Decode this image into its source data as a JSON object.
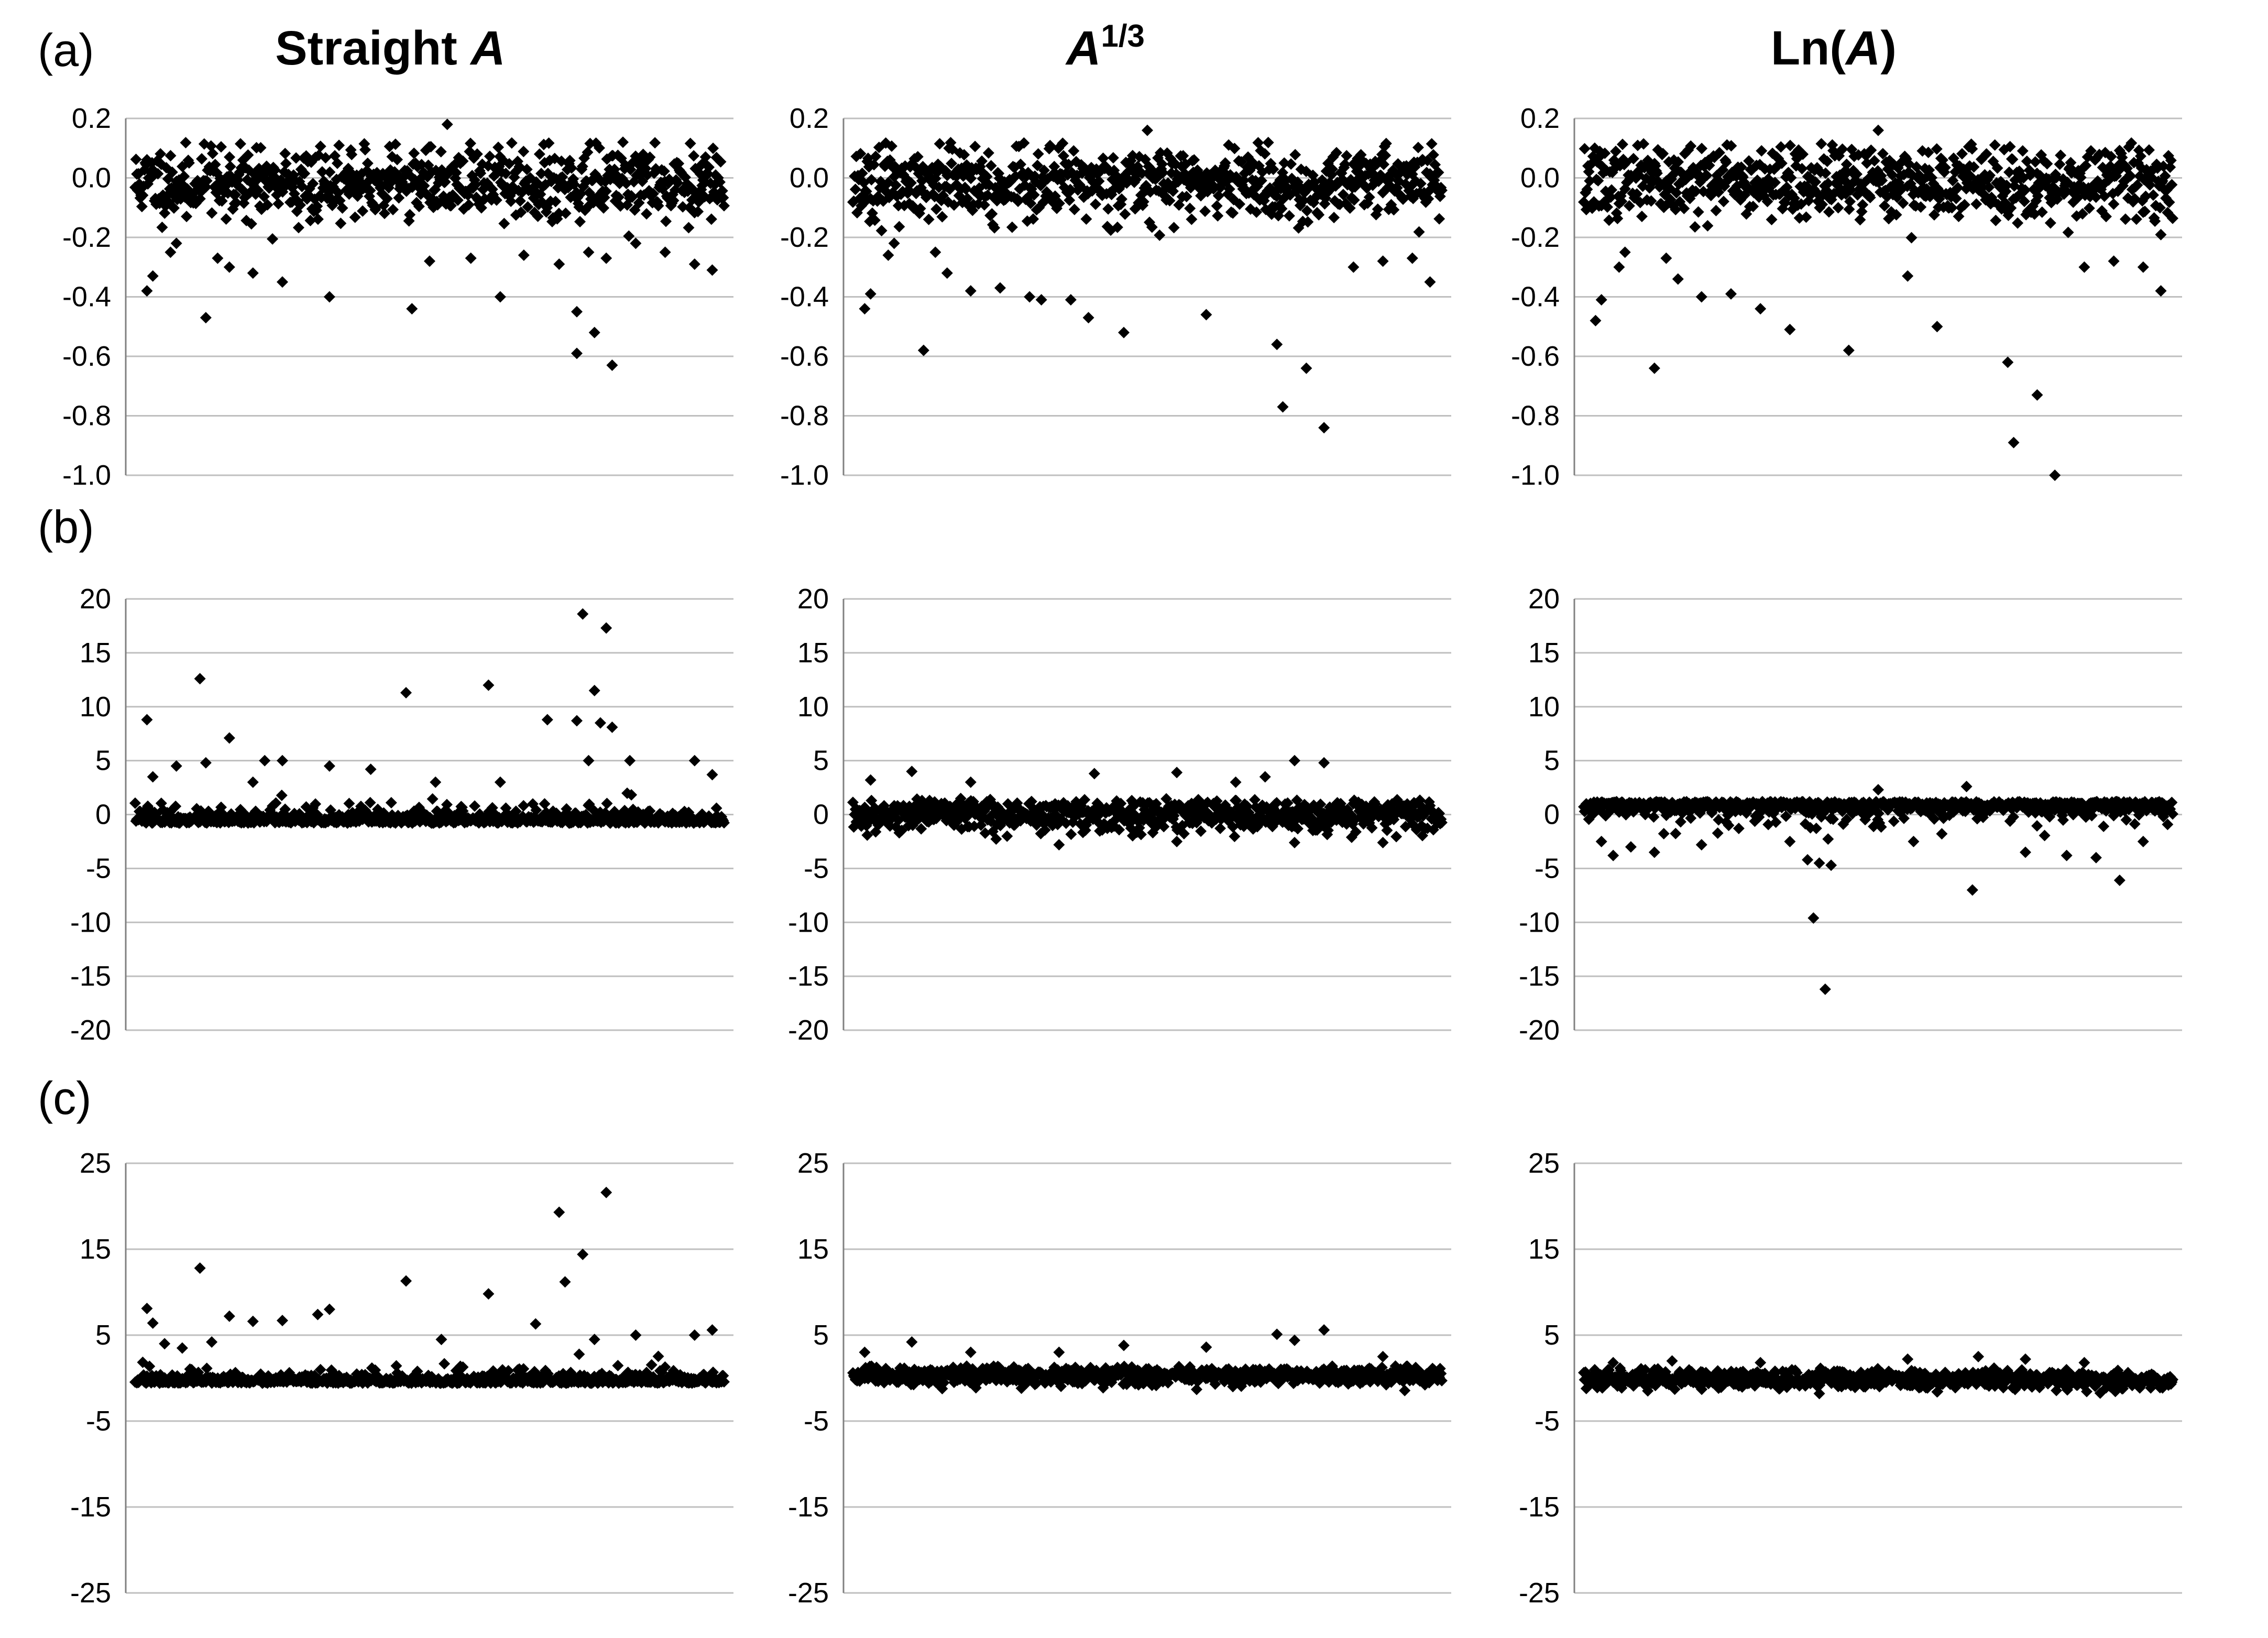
{
  "column_titles": [
    {
      "prefix": "Straight ",
      "var": "A",
      "sup": "",
      "suffix": ""
    },
    {
      "prefix": "",
      "var": "A",
      "sup": "1/3",
      "suffix": ""
    },
    {
      "prefix": "Ln(",
      "var": "A",
      "sup": "",
      "suffix": ")"
    }
  ],
  "row_labels": [
    "(a)",
    "(b)",
    "(c)"
  ],
  "colors": {
    "marker": "#000000",
    "grid": "#bfbfbf",
    "axis": "#808080"
  },
  "chart_data": [
    {
      "type": "scatter",
      "row": "(a)",
      "column": "Straight A",
      "title": "Straight A",
      "n": 700,
      "seed": 11,
      "ylim": [
        -1.0,
        0.2
      ],
      "yticks": [
        "0.2",
        "0.0",
        "-0.2",
        "-0.4",
        "-0.6",
        "-0.8",
        "-1.0"
      ],
      "grid": true,
      "series_note": "",
      "band": [
        -0.15,
        0.12
      ],
      "bulk_sd": 0.06,
      "outliers": [
        [
          0.02,
          -0.38
        ],
        [
          0.03,
          -0.33
        ],
        [
          0.06,
          -0.25
        ],
        [
          0.07,
          -0.22
        ],
        [
          0.12,
          -0.47
        ],
        [
          0.14,
          -0.27
        ],
        [
          0.16,
          -0.3
        ],
        [
          0.2,
          -0.32
        ],
        [
          0.25,
          -0.35
        ],
        [
          0.33,
          -0.4
        ],
        [
          0.47,
          -0.44
        ],
        [
          0.5,
          -0.28
        ],
        [
          0.53,
          0.18
        ],
        [
          0.57,
          -0.27
        ],
        [
          0.62,
          -0.4
        ],
        [
          0.66,
          -0.26
        ],
        [
          0.72,
          -0.29
        ],
        [
          0.75,
          -0.45
        ],
        [
          0.75,
          -0.59
        ],
        [
          0.77,
          -0.25
        ],
        [
          0.78,
          -0.52
        ],
        [
          0.8,
          -0.27
        ],
        [
          0.81,
          -0.63
        ],
        [
          0.85,
          -0.22
        ],
        [
          0.9,
          -0.25
        ],
        [
          0.95,
          -0.29
        ],
        [
          0.98,
          -0.31
        ]
      ]
    },
    {
      "type": "scatter",
      "row": "(a)",
      "column": "A^1/3",
      "title": "A^1/3",
      "n": 700,
      "seed": 23,
      "ylim": [
        -1.0,
        0.2
      ],
      "yticks": [
        "0.2",
        "0.0",
        "-0.2",
        "-0.4",
        "-0.6",
        "-0.8",
        "-1.0"
      ],
      "grid": true,
      "band": [
        -0.15,
        0.12
      ],
      "bulk_sd": 0.06,
      "outliers": [
        [
          0.02,
          -0.44
        ],
        [
          0.03,
          -0.39
        ],
        [
          0.06,
          -0.26
        ],
        [
          0.07,
          -0.22
        ],
        [
          0.12,
          -0.58
        ],
        [
          0.14,
          -0.25
        ],
        [
          0.16,
          -0.32
        ],
        [
          0.2,
          -0.38
        ],
        [
          0.25,
          -0.37
        ],
        [
          0.3,
          -0.4
        ],
        [
          0.32,
          -0.41
        ],
        [
          0.37,
          -0.41
        ],
        [
          0.4,
          -0.47
        ],
        [
          0.46,
          -0.52
        ],
        [
          0.5,
          0.16
        ],
        [
          0.6,
          -0.46
        ],
        [
          0.72,
          -0.56
        ],
        [
          0.73,
          -0.77
        ],
        [
          0.77,
          -0.64
        ],
        [
          0.8,
          -0.84
        ],
        [
          0.85,
          -0.3
        ],
        [
          0.9,
          -0.28
        ],
        [
          0.95,
          -0.27
        ],
        [
          0.98,
          -0.35
        ]
      ]
    },
    {
      "type": "scatter",
      "row": "(a)",
      "column": "Ln(A)",
      "title": "Ln(A)",
      "n": 700,
      "seed": 37,
      "ylim": [
        -1.0,
        0.2
      ],
      "yticks": [
        "0.2",
        "0.0",
        "-0.2",
        "-0.4",
        "-0.6",
        "-0.8",
        "-1.0"
      ],
      "grid": true,
      "band": [
        -0.15,
        0.12
      ],
      "bulk_sd": 0.06,
      "outliers": [
        [
          0.02,
          -0.48
        ],
        [
          0.03,
          -0.41
        ],
        [
          0.06,
          -0.3
        ],
        [
          0.07,
          -0.25
        ],
        [
          0.12,
          -0.64
        ],
        [
          0.14,
          -0.27
        ],
        [
          0.16,
          -0.34
        ],
        [
          0.2,
          -0.4
        ],
        [
          0.25,
          -0.39
        ],
        [
          0.3,
          -0.44
        ],
        [
          0.35,
          -0.51
        ],
        [
          0.45,
          -0.58
        ],
        [
          0.5,
          0.16
        ],
        [
          0.55,
          -0.33
        ],
        [
          0.6,
          -0.5
        ],
        [
          0.72,
          -0.62
        ],
        [
          0.73,
          -0.89
        ],
        [
          0.77,
          -0.73
        ],
        [
          0.8,
          -1.0
        ],
        [
          0.85,
          -0.3
        ],
        [
          0.9,
          -0.28
        ],
        [
          0.95,
          -0.3
        ],
        [
          0.98,
          -0.38
        ]
      ]
    },
    {
      "type": "scatter",
      "row": "(b)",
      "column": "Straight A",
      "title": "Straight A",
      "n": 700,
      "seed": 41,
      "ylim": [
        -20,
        20
      ],
      "yticks": [
        "20",
        "15",
        "10",
        "5",
        "0",
        "-5",
        "-10",
        "-15",
        "-20"
      ],
      "grid": true,
      "band": [
        -0.8,
        2.2
      ],
      "bulk_sd": 0.7,
      "skew": "positive",
      "outliers": [
        [
          0.02,
          8.8
        ],
        [
          0.03,
          3.5
        ],
        [
          0.07,
          4.5
        ],
        [
          0.11,
          12.6
        ],
        [
          0.12,
          4.8
        ],
        [
          0.16,
          7.1
        ],
        [
          0.2,
          3.0
        ],
        [
          0.22,
          5.0
        ],
        [
          0.25,
          5.0
        ],
        [
          0.33,
          4.5
        ],
        [
          0.4,
          4.2
        ],
        [
          0.46,
          11.3
        ],
        [
          0.51,
          3.0
        ],
        [
          0.6,
          12.0
        ],
        [
          0.62,
          3.0
        ],
        [
          0.7,
          8.8
        ],
        [
          0.75,
          8.7
        ],
        [
          0.76,
          18.6
        ],
        [
          0.77,
          5.0
        ],
        [
          0.78,
          11.5
        ],
        [
          0.79,
          8.5
        ],
        [
          0.8,
          17.3
        ],
        [
          0.81,
          8.1
        ],
        [
          0.84,
          5.0
        ],
        [
          0.95,
          5.0
        ],
        [
          0.98,
          3.7
        ]
      ]
    },
    {
      "type": "scatter",
      "row": "(b)",
      "column": "A^1/3",
      "title": "A^1/3",
      "n": 700,
      "seed": 53,
      "ylim": [
        -20,
        20
      ],
      "yticks": [
        "20",
        "15",
        "10",
        "5",
        "0",
        "-5",
        "-10",
        "-15",
        "-20"
      ],
      "grid": true,
      "band": [
        -1.5,
        1.5
      ],
      "bulk_sd": 0.8,
      "outliers": [
        [
          0.03,
          3.2
        ],
        [
          0.1,
          4.0
        ],
        [
          0.2,
          3.0
        ],
        [
          0.35,
          -2.8
        ],
        [
          0.41,
          3.8
        ],
        [
          0.55,
          -2.5
        ],
        [
          0.55,
          3.9
        ],
        [
          0.65,
          3.0
        ],
        [
          0.7,
          3.5
        ],
        [
          0.75,
          5.0
        ],
        [
          0.8,
          4.8
        ],
        [
          0.75,
          -2.6
        ],
        [
          0.9,
          -2.6
        ]
      ]
    },
    {
      "type": "scatter",
      "row": "(b)",
      "column": "Ln(A)",
      "title": "Ln(A)",
      "n": 700,
      "seed": 67,
      "ylim": [
        -20,
        20
      ],
      "yticks": [
        "20",
        "15",
        "10",
        "5",
        "0",
        "-5",
        "-10",
        "-15",
        "-20"
      ],
      "grid": true,
      "band": [
        -2.0,
        1.2
      ],
      "bulk_sd": 0.8,
      "skew": "negative",
      "outliers": [
        [
          0.03,
          -2.5
        ],
        [
          0.05,
          -3.8
        ],
        [
          0.08,
          -3.0
        ],
        [
          0.12,
          -3.5
        ],
        [
          0.2,
          -2.8
        ],
        [
          0.35,
          -2.5
        ],
        [
          0.38,
          -4.2
        ],
        [
          0.39,
          -9.6
        ],
        [
          0.4,
          -4.5
        ],
        [
          0.41,
          -16.2
        ],
        [
          0.42,
          -4.7
        ],
        [
          0.56,
          -2.5
        ],
        [
          0.66,
          -7.0
        ],
        [
          0.75,
          -3.5
        ],
        [
          0.82,
          -3.8
        ],
        [
          0.87,
          -4.0
        ],
        [
          0.91,
          -6.1
        ],
        [
          0.95,
          -2.5
        ],
        [
          0.65,
          2.6
        ],
        [
          0.5,
          2.3
        ]
      ]
    },
    {
      "type": "scatter",
      "row": "(c)",
      "column": "Straight A",
      "title": "Straight A",
      "n": 700,
      "seed": 71,
      "ylim": [
        -25,
        25
      ],
      "yticks": [
        "25",
        "15",
        "5",
        "-5",
        "-15",
        "-25"
      ],
      "grid": true,
      "band": [
        -0.6,
        2.0
      ],
      "bulk_sd": 0.7,
      "skew": "positive",
      "outliers": [
        [
          0.02,
          8.1
        ],
        [
          0.03,
          6.4
        ],
        [
          0.05,
          4.0
        ],
        [
          0.08,
          3.5
        ],
        [
          0.11,
          12.8
        ],
        [
          0.13,
          4.2
        ],
        [
          0.16,
          7.2
        ],
        [
          0.2,
          6.6
        ],
        [
          0.25,
          6.7
        ],
        [
          0.31,
          7.4
        ],
        [
          0.33,
          8.0
        ],
        [
          0.46,
          11.3
        ],
        [
          0.52,
          4.5
        ],
        [
          0.6,
          9.8
        ],
        [
          0.68,
          6.3
        ],
        [
          0.72,
          19.3
        ],
        [
          0.73,
          11.2
        ],
        [
          0.76,
          14.4
        ],
        [
          0.78,
          4.5
        ],
        [
          0.8,
          21.6
        ],
        [
          0.85,
          5.0
        ],
        [
          0.95,
          5.0
        ],
        [
          0.98,
          5.6
        ]
      ]
    },
    {
      "type": "scatter",
      "row": "(c)",
      "column": "A^1/3",
      "title": "A^1/3",
      "n": 700,
      "seed": 83,
      "ylim": [
        -25,
        25
      ],
      "yticks": [
        "25",
        "15",
        "5",
        "-5",
        "-15",
        "-25"
      ],
      "grid": true,
      "band": [
        -0.8,
        1.4
      ],
      "bulk_sd": 0.55,
      "outliers": [
        [
          0.02,
          3.0
        ],
        [
          0.1,
          4.2
        ],
        [
          0.2,
          3.0
        ],
        [
          0.35,
          3.0
        ],
        [
          0.46,
          3.8
        ],
        [
          0.6,
          3.6
        ],
        [
          0.72,
          5.1
        ],
        [
          0.75,
          4.4
        ],
        [
          0.8,
          5.6
        ],
        [
          0.9,
          2.5
        ]
      ]
    },
    {
      "type": "scatter",
      "row": "(c)",
      "column": "Ln(A)",
      "title": "Ln(A)",
      "n": 700,
      "seed": 97,
      "ylim": [
        -25,
        25
      ],
      "yticks": [
        "25",
        "15",
        "5",
        "-5",
        "-15",
        "-25"
      ],
      "grid": true,
      "band": [
        -1.5,
        1.2
      ],
      "bulk_sd": 0.55,
      "outliers": [
        [
          0.05,
          1.8
        ],
        [
          0.15,
          2.0
        ],
        [
          0.3,
          1.8
        ],
        [
          0.55,
          2.2
        ],
        [
          0.67,
          2.5
        ],
        [
          0.75,
          2.2
        ],
        [
          0.85,
          1.8
        ],
        [
          0.4,
          -1.8
        ],
        [
          0.6,
          -1.6
        ]
      ]
    }
  ]
}
